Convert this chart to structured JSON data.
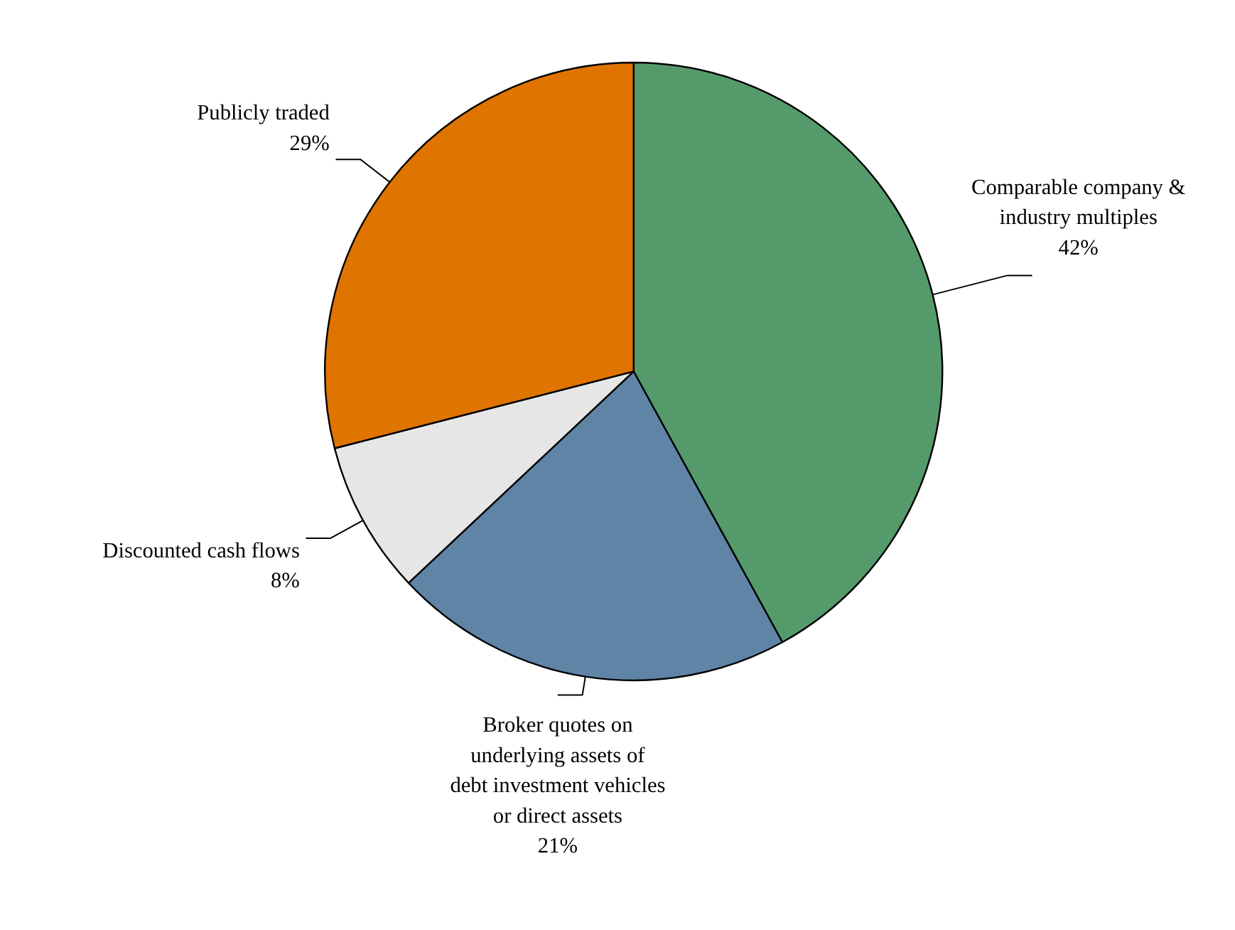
{
  "chart_data": {
    "type": "pie",
    "categories": [
      "Comparable company & industry multiples",
      "Broker quotes on underlying assets of debt investment vehicles or direct assets",
      "Discounted cash flows",
      "Publicly traded"
    ],
    "values": [
      42,
      21,
      8,
      29
    ],
    "value_labels": [
      "42%",
      "21%",
      "8%",
      "29%"
    ],
    "colors": [
      "#559a6b",
      "#5f84a6",
      "#e6e6e6",
      "#e07400"
    ]
  }
}
